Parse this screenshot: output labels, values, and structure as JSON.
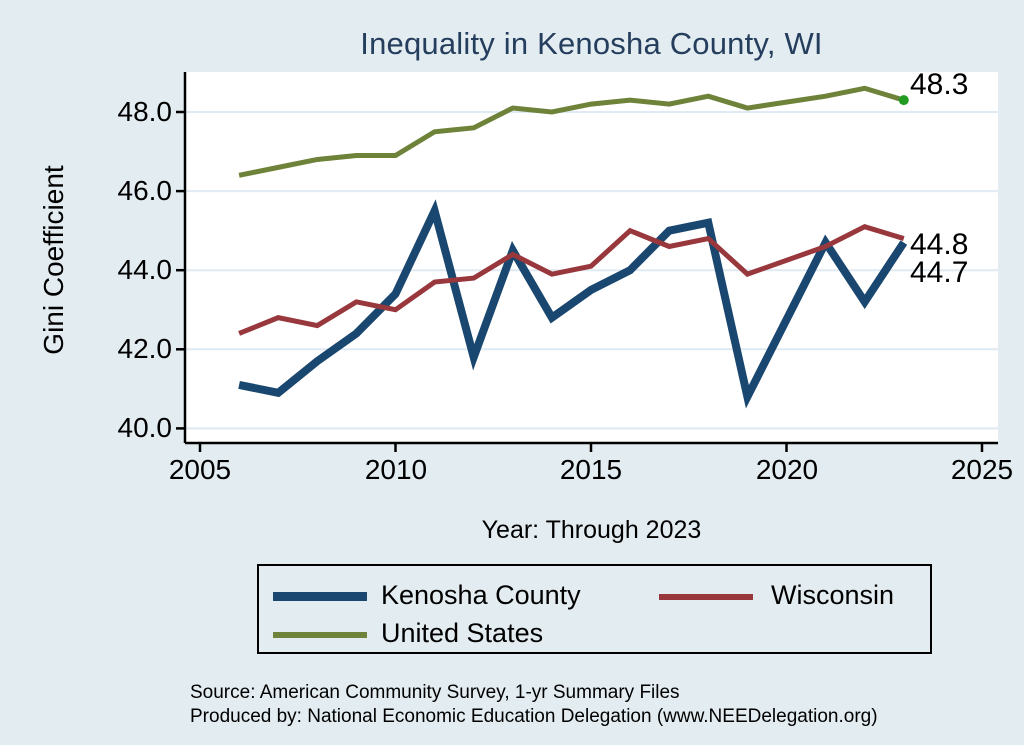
{
  "page": {
    "background": "#e3edf1"
  },
  "chart_data": {
    "type": "line",
    "title": "Inequality in Kenosha County, WI",
    "title_color": "#263e5d",
    "ylabel": "Gini Coefficient",
    "xlabel": "Year: Through 2023",
    "xlim": [
      2005,
      2025
    ],
    "ylim": [
      39.6,
      49.0
    ],
    "grid": true,
    "legend_position": "bottom",
    "x_ticks": [
      "2005",
      "2010",
      "2015",
      "2020",
      "2025"
    ],
    "x_tick_values": [
      2005,
      2010,
      2015,
      2020,
      2025
    ],
    "y_ticks": [
      "48.0",
      "46.0",
      "44.0",
      "42.0",
      "40.0"
    ],
    "y_tick_values": [
      48,
      46,
      44,
      42,
      40
    ],
    "x": [
      2006,
      2007,
      2008,
      2009,
      2010,
      2011,
      2012,
      2013,
      2014,
      2015,
      2016,
      2017,
      2018,
      2019,
      2021,
      2022,
      2023
    ],
    "series": [
      {
        "name": "Kenosha County",
        "color": "#1a476f",
        "stroke_width": 8,
        "values": [
          41.1,
          40.9,
          41.7,
          42.4,
          43.4,
          45.5,
          41.8,
          44.5,
          42.8,
          43.5,
          44.0,
          45.0,
          45.2,
          40.8,
          44.7,
          43.2,
          44.7
        ]
      },
      {
        "name": "Wisconsin",
        "color": "#98383d",
        "stroke_width": 5,
        "values": [
          42.4,
          42.8,
          42.6,
          43.2,
          43.0,
          43.7,
          43.8,
          44.4,
          43.9,
          44.1,
          45.0,
          44.6,
          44.8,
          43.9,
          44.6,
          45.1,
          44.8
        ]
      },
      {
        "name": "United States",
        "color": "#6e8239",
        "stroke_width": 5,
        "end_marker_color": "#219b21",
        "values": [
          46.4,
          46.6,
          46.8,
          46.9,
          46.9,
          47.5,
          47.6,
          48.1,
          48.0,
          48.2,
          48.3,
          48.2,
          48.4,
          48.1,
          48.4,
          48.6,
          48.3
        ]
      }
    ],
    "end_labels": {
      "us": "48.3",
      "wisconsin": "44.8",
      "kenosha": "44.7"
    }
  },
  "legend": {
    "items": [
      {
        "label": "Kenosha County",
        "color": "#1a476f",
        "swatch_height": 9
      },
      {
        "label": "Wisconsin",
        "color": "#98383d",
        "swatch_height": 6
      },
      {
        "label": "United States",
        "color": "#6e8239",
        "swatch_height": 6
      }
    ]
  },
  "footer": {
    "source_line": "Source: American Community Survey, 1-yr Summary Files",
    "produced_line": "Produced by: National Economic Education Delegation (www.NEEDelegation.org)"
  }
}
